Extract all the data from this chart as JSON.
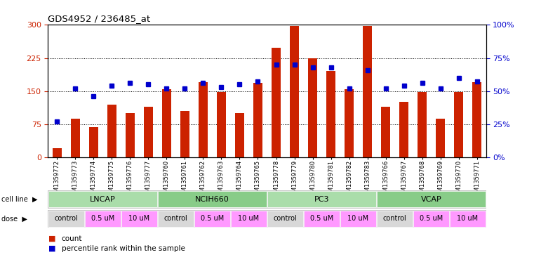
{
  "title": "GDS4952 / 236485_at",
  "samples": [
    "GSM1359772",
    "GSM1359773",
    "GSM1359774",
    "GSM1359775",
    "GSM1359776",
    "GSM1359777",
    "GSM1359760",
    "GSM1359761",
    "GSM1359762",
    "GSM1359763",
    "GSM1359764",
    "GSM1359765",
    "GSM1359778",
    "GSM1359779",
    "GSM1359780",
    "GSM1359781",
    "GSM1359782",
    "GSM1359783",
    "GSM1359766",
    "GSM1359767",
    "GSM1359768",
    "GSM1359769",
    "GSM1359770",
    "GSM1359771"
  ],
  "counts": [
    20,
    88,
    68,
    120,
    100,
    115,
    155,
    105,
    170,
    148,
    100,
    168,
    248,
    298,
    225,
    195,
    155,
    298,
    115,
    125,
    148,
    88,
    148,
    170
  ],
  "percentiles": [
    27,
    52,
    46,
    54,
    56,
    55,
    52,
    52,
    56,
    53,
    55,
    57,
    70,
    70,
    68,
    68,
    52,
    66,
    52,
    54,
    56,
    52,
    60,
    57
  ],
  "cell_lines": [
    "LNCAP",
    "NCIH660",
    "PC3",
    "VCAP"
  ],
  "cell_line_spans": [
    6,
    6,
    6,
    6
  ],
  "cell_line_colors": [
    "#AADDAA",
    "#88CC88",
    "#AADDAA",
    "#88CC88"
  ],
  "dose_labels": [
    "control",
    "0.5 uM",
    "10 uM",
    "control",
    "0.5 uM",
    "10 uM",
    "control",
    "0.5 uM",
    "10 uM",
    "control",
    "0.5 uM",
    "10 uM"
  ],
  "dose_colors": [
    "#D8D8D8",
    "#FF99FF",
    "#FF99FF",
    "#D8D8D8",
    "#FF99FF",
    "#FF99FF",
    "#D8D8D8",
    "#FF99FF",
    "#FF99FF",
    "#D8D8D8",
    "#FF99FF",
    "#FF99FF"
  ],
  "bar_color": "#CC2200",
  "dot_color": "#0000CC",
  "ylim_left": [
    0,
    300
  ],
  "ylim_right": [
    0,
    100
  ],
  "yticks_left": [
    0,
    75,
    150,
    225,
    300
  ],
  "yticks_right": [
    0,
    25,
    50,
    75,
    100
  ],
  "ytick_labels_right": [
    "0%",
    "25%",
    "50%",
    "75%",
    "100%"
  ],
  "hlines": [
    75,
    150,
    225
  ],
  "background_color": "#FFFFFF"
}
